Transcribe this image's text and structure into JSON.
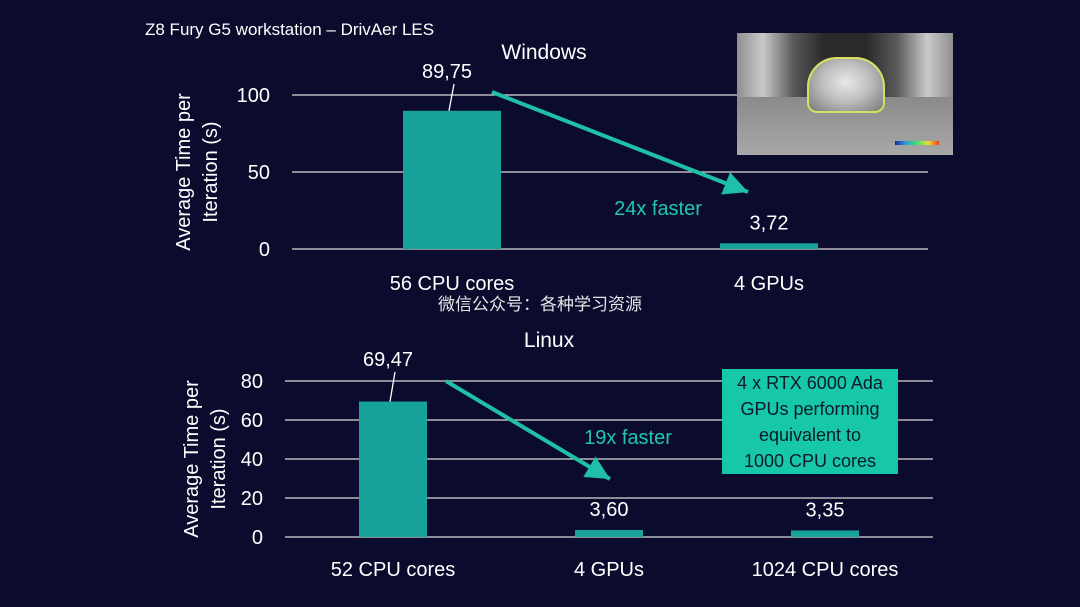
{
  "header": {
    "title": "Z8 Fury G5 workstation – DrivAer LES"
  },
  "watermark": "微信公众号：各种学习资源",
  "image": {
    "alt": "DrivAer car simulation render"
  },
  "colors": {
    "bar": "#17a39a",
    "arrow": "#20c0a8",
    "speedup_text": "#20c7b0",
    "callout_bg": "#16c8a8",
    "background": "#0b0b2e"
  },
  "chart_data": [
    {
      "type": "bar",
      "title": "Windows",
      "ylabel": "Average Time per Iteration (s)",
      "ylabel_lines": [
        "Average Time per",
        "Iteration (s)"
      ],
      "categories": [
        "56 CPU cores",
        "4 GPUs"
      ],
      "values": [
        89.75,
        3.72
      ],
      "value_labels": [
        "89,75",
        "3,72"
      ],
      "ylim": [
        0,
        100
      ],
      "yticks": [
        0,
        50,
        100
      ],
      "grid": true,
      "annotation": "24x faster"
    },
    {
      "type": "bar",
      "title": "Linux",
      "ylabel": "Average Time per Iteration (s)",
      "ylabel_lines": [
        "Average Time per",
        "Iteration (s)"
      ],
      "categories": [
        "52 CPU cores",
        "4 GPUs",
        "1024 CPU cores"
      ],
      "values": [
        69.47,
        3.6,
        3.35
      ],
      "value_labels": [
        "69,47",
        "3,60",
        "3,35"
      ],
      "ylim": [
        0,
        80
      ],
      "yticks": [
        0,
        20,
        40,
        60,
        80
      ],
      "grid": true,
      "annotation": "19x faster",
      "callout_lines": [
        "4 x RTX 6000 Ada",
        "GPUs performing",
        "equivalent to",
        "1000 CPU cores"
      ]
    }
  ]
}
